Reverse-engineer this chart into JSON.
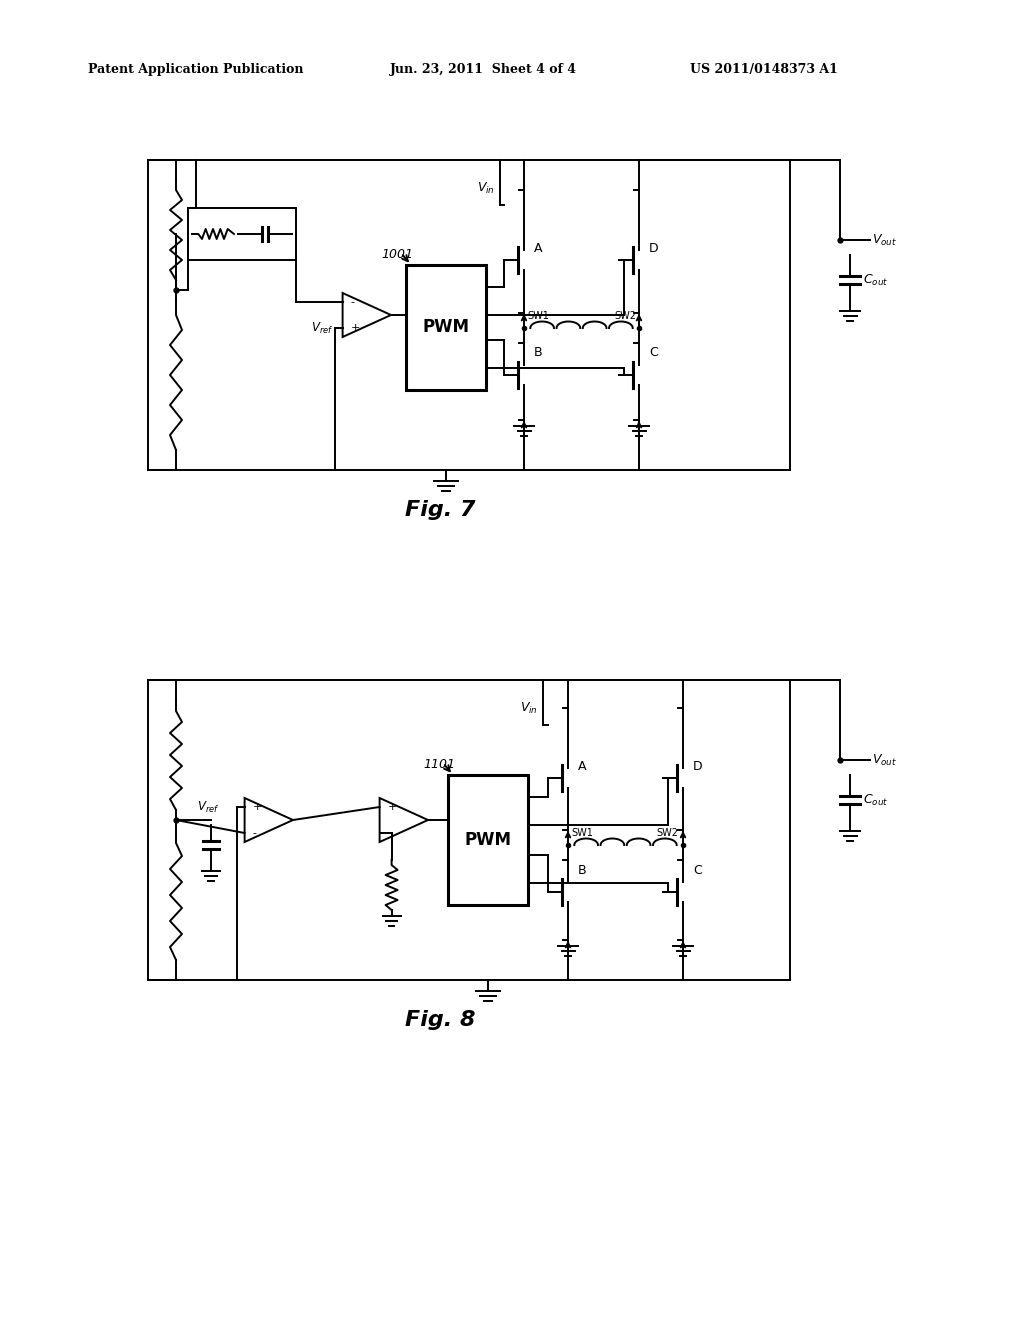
{
  "background_color": "#ffffff",
  "header_left": "Patent Application Publication",
  "header_center": "Jun. 23, 2011  Sheet 4 of 4",
  "header_right": "US 2011/0148373 A1",
  "fig7_label": "Fig. 7",
  "fig8_label": "Fig. 8",
  "fig7_number": "1001",
  "fig8_number": "1101",
  "line_color": "#000000"
}
